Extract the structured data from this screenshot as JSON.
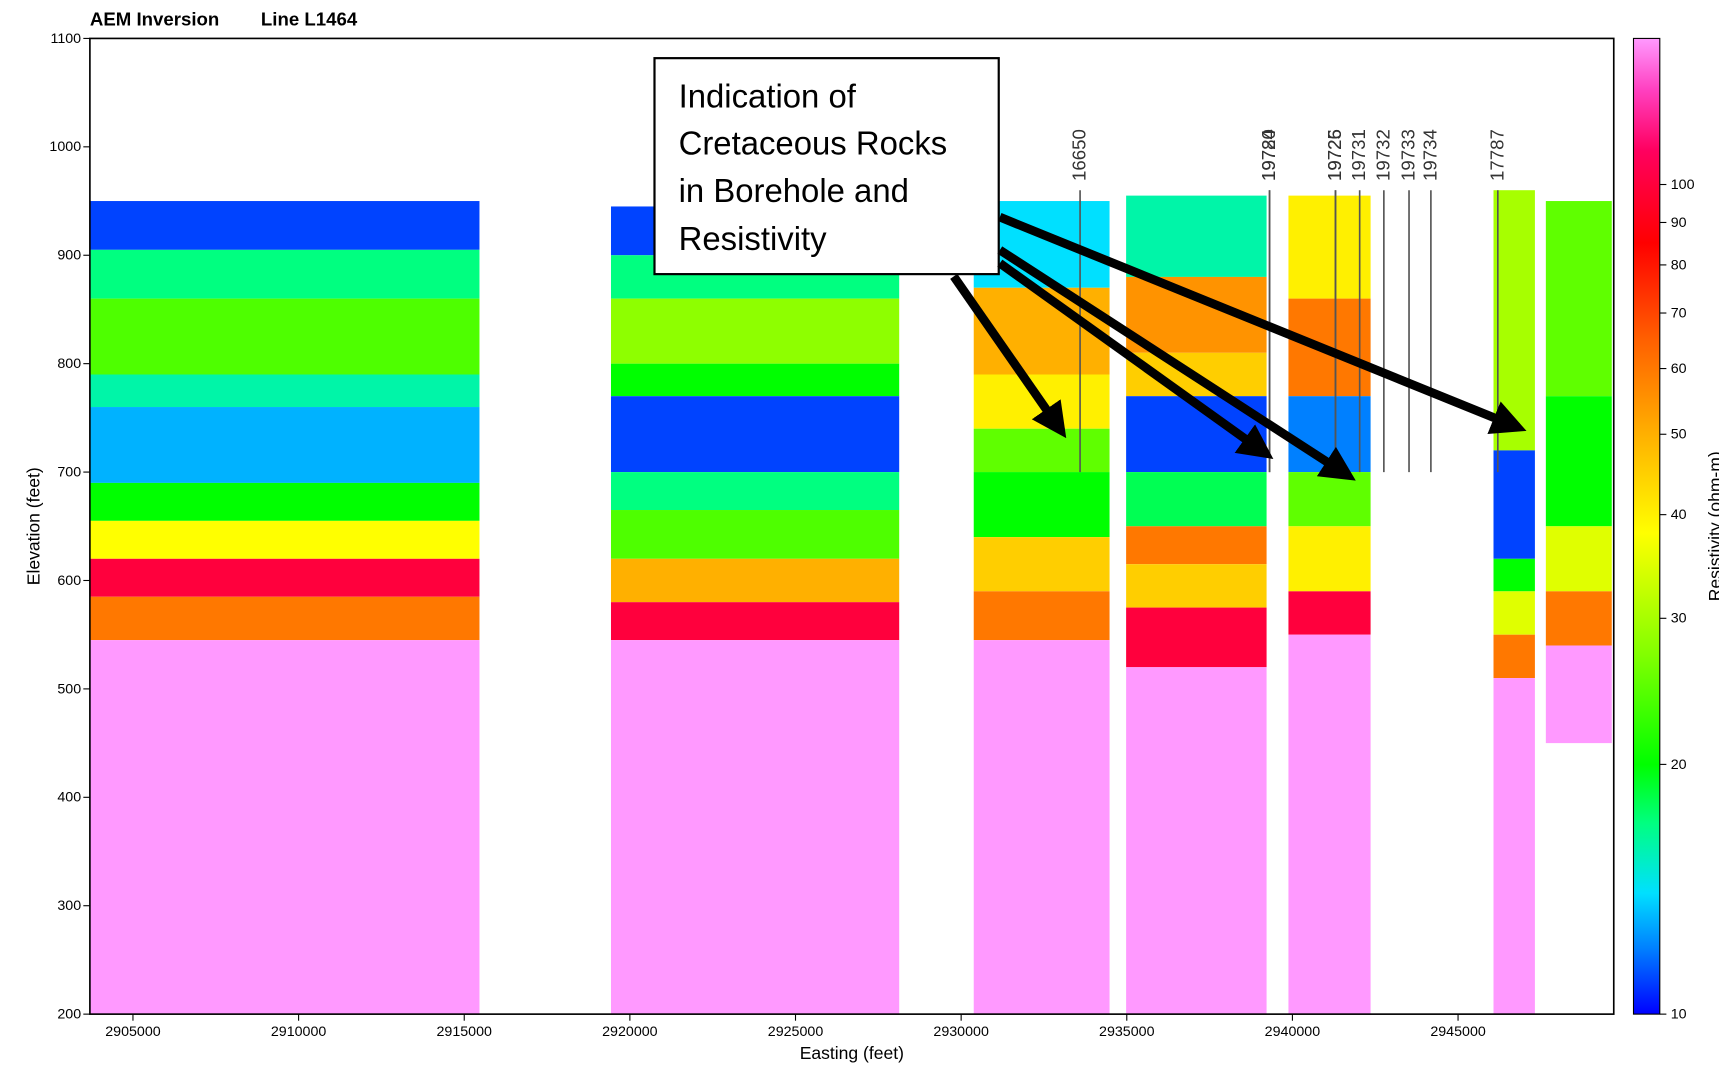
{
  "chart_data": {
    "type": "section",
    "title": "AEM Inversion",
    "subtitle": "Line L1464",
    "x_label": "Easting (feet)",
    "y_label": "Elevation (feet)",
    "xlim": [
      2903700,
      2949700
    ],
    "ylim": [
      200,
      1100
    ],
    "xticks": [
      2905000,
      2910000,
      2915000,
      2920000,
      2925000,
      2930000,
      2935000,
      2940000,
      2945000
    ],
    "yticks": [
      200,
      300,
      400,
      500,
      600,
      700,
      800,
      900,
      1000,
      1100
    ],
    "sections": [
      {
        "x": [
          2903710,
          2915460
        ],
        "layers": [
          [
            950,
            905,
            11
          ],
          [
            905,
            860,
            17
          ],
          [
            860,
            790,
            24
          ],
          [
            790,
            760,
            16
          ],
          [
            760,
            690,
            13
          ],
          [
            690,
            655,
            20
          ],
          [
            655,
            620,
            38
          ],
          [
            620,
            585,
            100
          ],
          [
            585,
            545,
            60
          ],
          [
            545,
            200,
            150
          ]
        ]
      },
      {
        "x": [
          2919430,
          2928130
        ],
        "layers": [
          [
            945,
            900,
            11
          ],
          [
            900,
            860,
            17
          ],
          [
            860,
            800,
            28
          ],
          [
            800,
            770,
            20
          ],
          [
            770,
            700,
            11
          ],
          [
            700,
            665,
            17
          ],
          [
            665,
            620,
            24
          ],
          [
            620,
            580,
            50
          ],
          [
            580,
            545,
            100
          ],
          [
            545,
            200,
            150
          ]
        ]
      },
      {
        "x": [
          2930380,
          2934480
        ],
        "layers": [
          [
            950,
            870,
            14
          ],
          [
            870,
            790,
            50
          ],
          [
            790,
            740,
            40
          ],
          [
            740,
            700,
            25
          ],
          [
            700,
            640,
            20
          ],
          [
            640,
            590,
            45
          ],
          [
            590,
            545,
            60
          ],
          [
            545,
            200,
            150
          ]
        ]
      },
      {
        "x": [
          2934980,
          2939220
        ],
        "layers": [
          [
            955,
            880,
            16
          ],
          [
            880,
            810,
            55
          ],
          [
            810,
            770,
            45
          ],
          [
            770,
            700,
            11
          ],
          [
            700,
            650,
            18
          ],
          [
            650,
            615,
            60
          ],
          [
            615,
            575,
            45
          ],
          [
            575,
            520,
            100
          ],
          [
            520,
            200,
            150
          ]
        ]
      },
      {
        "x": [
          2939880,
          2942360
        ],
        "layers": [
          [
            955,
            860,
            40
          ],
          [
            860,
            770,
            60
          ],
          [
            770,
            700,
            12
          ],
          [
            700,
            650,
            25
          ],
          [
            650,
            590,
            40
          ],
          [
            590,
            550,
            100
          ],
          [
            550,
            200,
            150
          ]
        ]
      },
      {
        "x": [
          2946070,
          2947320
        ],
        "layers": [
          [
            960,
            720,
            30
          ],
          [
            720,
            620,
            11
          ],
          [
            620,
            590,
            20
          ],
          [
            590,
            550,
            35
          ],
          [
            550,
            510,
            60
          ],
          [
            510,
            200,
            150
          ]
        ]
      },
      {
        "x": [
          2947650,
          2949640
        ],
        "layers": [
          [
            950,
            770,
            25
          ],
          [
            770,
            650,
            20
          ],
          [
            650,
            590,
            35
          ],
          [
            590,
            540,
            60
          ],
          [
            540,
            450,
            150
          ]
        ]
      }
    ],
    "boreholes": [
      {
        "label": "16650",
        "x": 2933590
      },
      {
        "label": "19724",
        "x": 2939310
      },
      {
        "label": "19780",
        "x": 2939310
      },
      {
        "label": "19725",
        "x": 2941300
      },
      {
        "label": "19726",
        "x": 2941300
      },
      {
        "label": "19731",
        "x": 2942030
      },
      {
        "label": "19732",
        "x": 2942760
      },
      {
        "label": "19733",
        "x": 2943520
      },
      {
        "label": "19734",
        "x": 2944180
      },
      {
        "label": "17787",
        "x": 2946200
      }
    ],
    "colorbar": {
      "label": "Resistivity (ohm-m)",
      "log": true,
      "lim": [
        10,
        150
      ],
      "ticks": [
        10,
        20,
        30,
        40,
        50,
        60,
        70,
        80,
        90,
        100
      ],
      "colormap": [
        [
          10,
          "#0000ff"
        ],
        [
          12,
          "#0080ff"
        ],
        [
          14,
          "#00e0ff"
        ],
        [
          17,
          "#00ff80"
        ],
        [
          20,
          "#00ff00"
        ],
        [
          27,
          "#80ff00"
        ],
        [
          38,
          "#ffff00"
        ],
        [
          50,
          "#ffb000"
        ],
        [
          65,
          "#ff6000"
        ],
        [
          85,
          "#ff0000"
        ],
        [
          110,
          "#ff0060"
        ],
        [
          130,
          "#ff40c0"
        ],
        [
          150,
          "#ff99ff"
        ]
      ]
    },
    "annotation": {
      "lines": [
        "Indication of",
        "Cretaceous Rocks",
        "in Borehole and",
        "Resistivity"
      ]
    }
  }
}
